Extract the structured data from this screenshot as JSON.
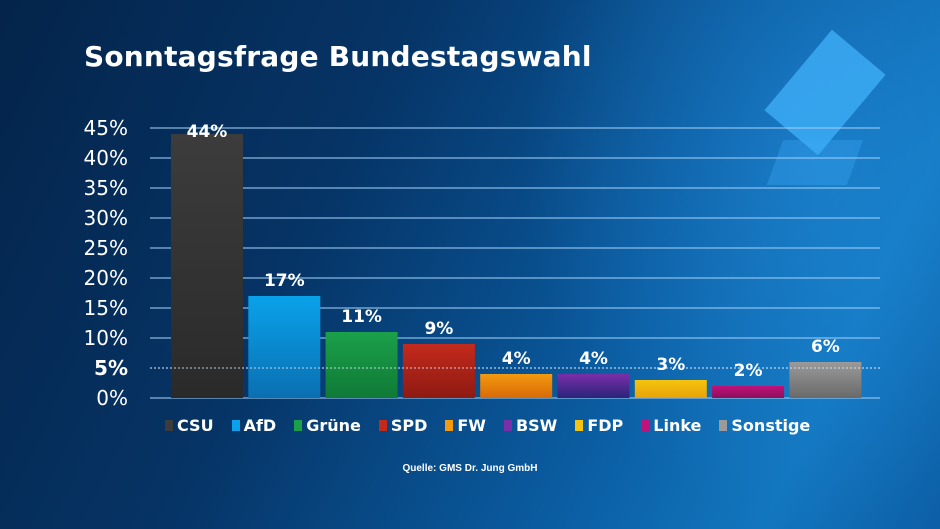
{
  "title": "Sonntagsfrage Bundestagswahl",
  "source": "Quelle: GMS Dr. Jung GmbH",
  "chart_data": {
    "type": "bar",
    "title": "Sonntagsfrage Bundestagswahl",
    "xlabel": "",
    "ylabel": "",
    "ylim": [
      0,
      45
    ],
    "yticks": [
      0,
      5,
      10,
      15,
      20,
      25,
      30,
      35,
      40,
      45
    ],
    "ytick_labels": [
      "0%",
      "5%",
      "10%",
      "15%",
      "20%",
      "25%",
      "30%",
      "35%",
      "40%",
      "45%"
    ],
    "highlight_line": {
      "value": 5,
      "style": "dashed",
      "label": "5%"
    },
    "grid": true,
    "legend": "bottom",
    "categories": [
      "CSU",
      "AfD",
      "Grüne",
      "SPD",
      "FW",
      "BSW",
      "FDP",
      "Linke",
      "Sonstige"
    ],
    "values": [
      44,
      17,
      11,
      9,
      4,
      4,
      3,
      2,
      6
    ],
    "value_labels": [
      "44%",
      "17%",
      "11%",
      "9%",
      "4%",
      "4%",
      "3%",
      "2%",
      "6%"
    ],
    "colors": [
      "#3c3c3c",
      "#0aa2ea",
      "#1ba04a",
      "#c42a1c",
      "#f39a0f",
      "#7a2fa8",
      "#f4c40e",
      "#c0127a",
      "#9a9a9a"
    ],
    "colors_dark": [
      "#2a2a2a",
      "#0a6fb2",
      "#0f7a36",
      "#8e1a12",
      "#d96a08",
      "#2a237a",
      "#e8a20a",
      "#8e0e5a",
      "#6a6a6a"
    ]
  }
}
